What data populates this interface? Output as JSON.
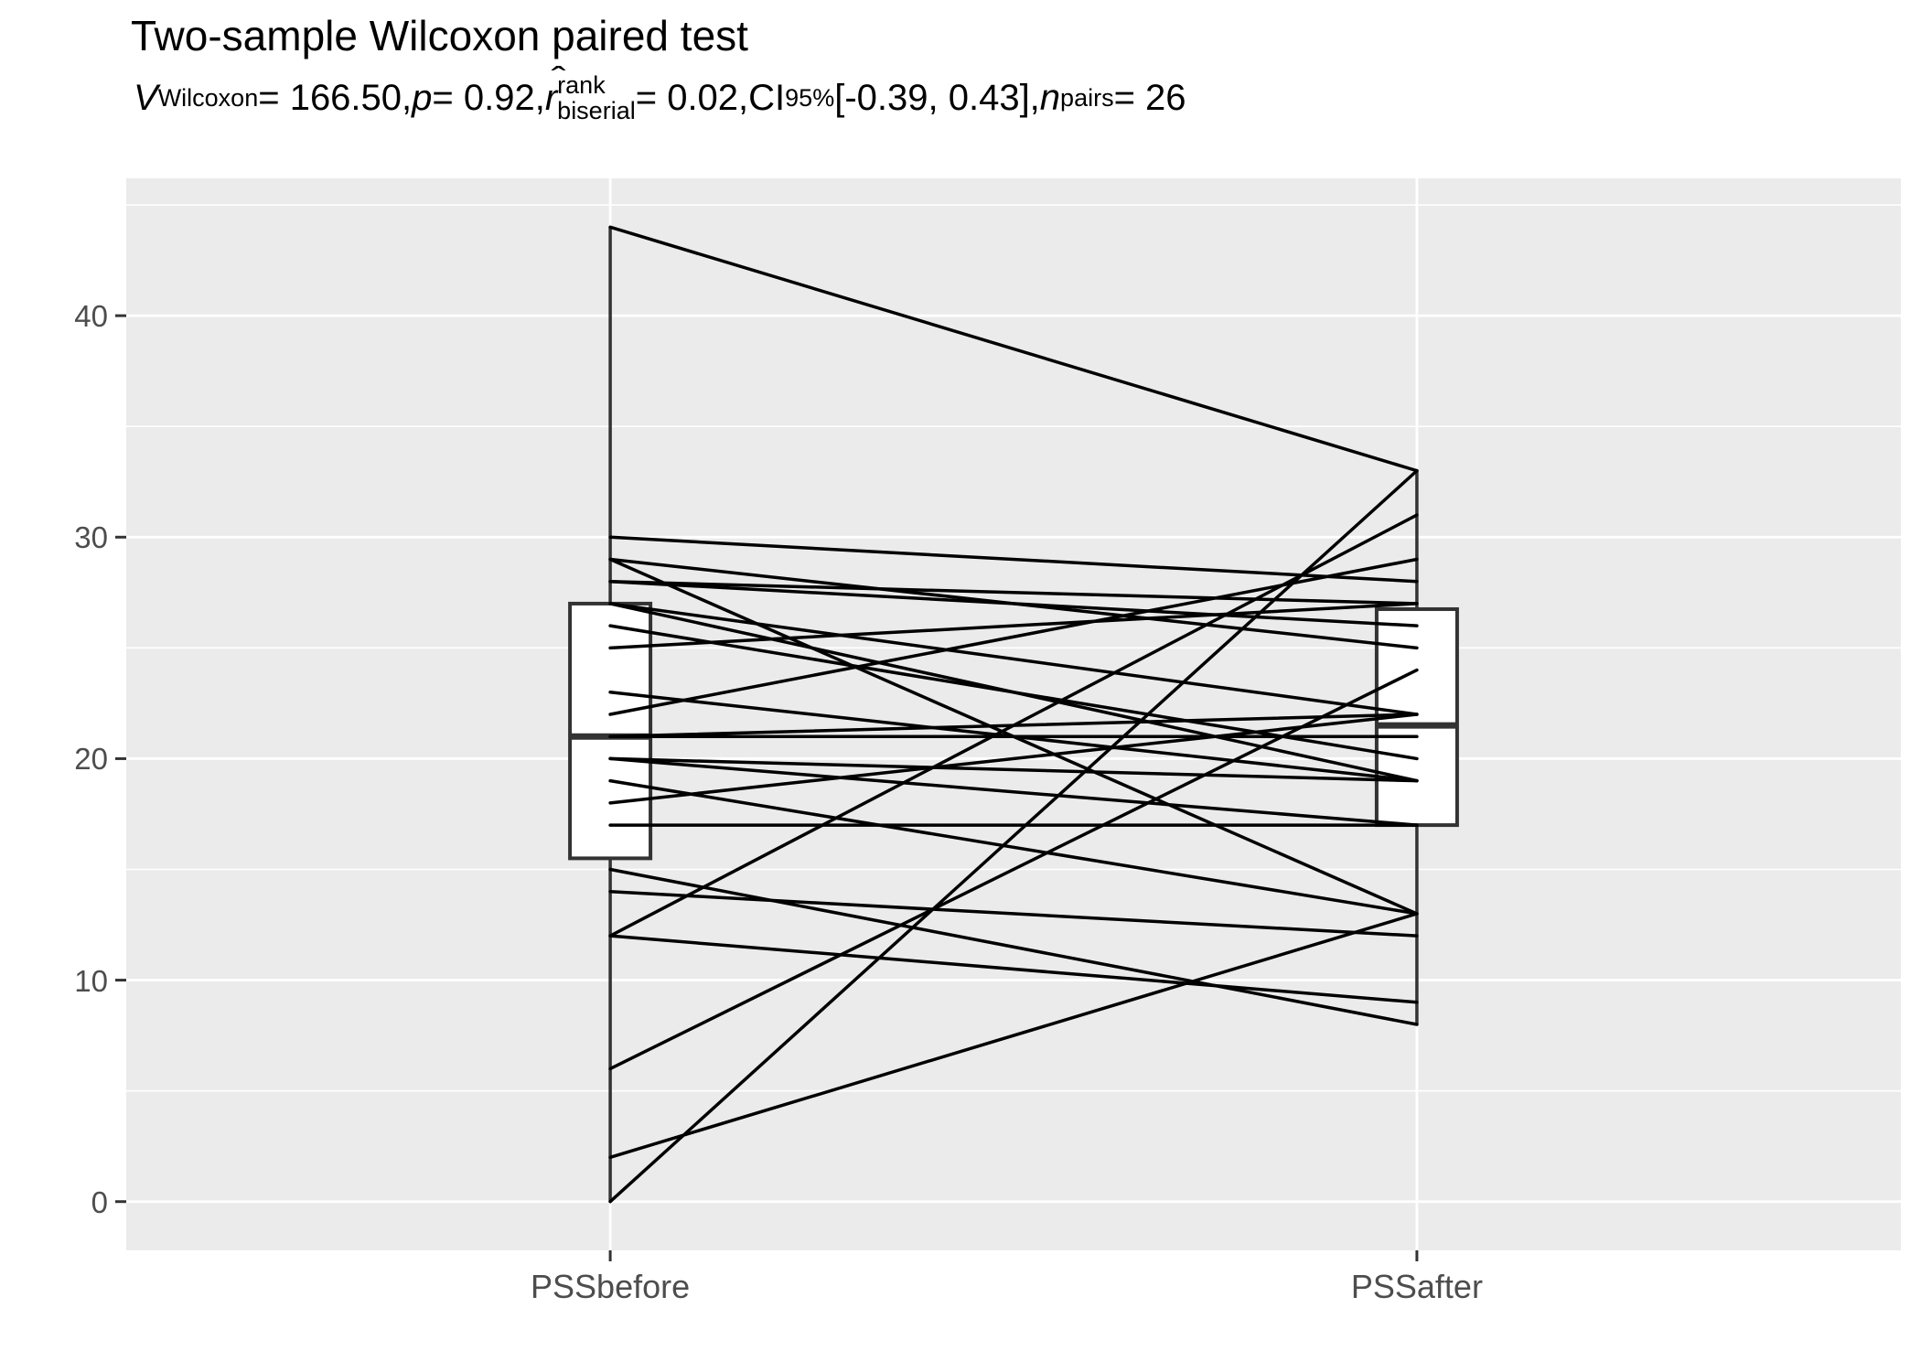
{
  "title": "Two-sample Wilcoxon paired test",
  "subtitle": {
    "v_sym": "V",
    "v_sub": "Wilcoxon",
    "v_val": " = 166.50, ",
    "p_sym": "p",
    "p_val": " = 0.92, ",
    "r_sym": "r",
    "r_hat": "ˆ",
    "r_sup": "rank",
    "r_sub": "biserial",
    "r_val": " = 0.02, ",
    "ci_sym": "CI",
    "ci_sub": "95%",
    "ci_val": " [-0.39, 0.43], ",
    "n_sym": "n",
    "n_sub": "pairs",
    "n_val": " = 26"
  },
  "axes": {
    "x": {
      "categories": [
        "PSSbefore",
        "PSSafter"
      ]
    },
    "y": {
      "major_ticks": [
        0,
        10,
        20,
        30,
        40
      ],
      "minor_ticks": [
        5,
        15,
        25,
        35,
        45
      ],
      "domain": [
        -2.2,
        46.2
      ]
    }
  },
  "style": {
    "panel_fill": "#EBEBEB",
    "grid_color": "#FFFFFF",
    "box_stroke": "#333333",
    "box_fill": "#FFFFFF",
    "line_color": "#000000",
    "axis_text_color": "#4D4D4D",
    "tick_color": "#333333"
  },
  "chart_data": {
    "type": "paired-line-box",
    "title": "Two-sample Wilcoxon paired test",
    "x_categories": [
      "PSSbefore",
      "PSSafter"
    ],
    "n_pairs": 26,
    "stats": {
      "V": 166.5,
      "p": 0.92,
      "r_rank_biserial": 0.02,
      "ci95": [
        -0.39,
        0.43
      ]
    },
    "pairs": [
      [
        44,
        33
      ],
      [
        30,
        28
      ],
      [
        29,
        25
      ],
      [
        29,
        13
      ],
      [
        28,
        27
      ],
      [
        28,
        26
      ],
      [
        27,
        22
      ],
      [
        27,
        19
      ],
      [
        26,
        20
      ],
      [
        25,
        27
      ],
      [
        23,
        19
      ],
      [
        22,
        29
      ],
      [
        21,
        21
      ],
      [
        21,
        22
      ],
      [
        20,
        19
      ],
      [
        20,
        17
      ],
      [
        19,
        13
      ],
      [
        18,
        22
      ],
      [
        17,
        17
      ],
      [
        15,
        8
      ],
      [
        14,
        12
      ],
      [
        12,
        31
      ],
      [
        12,
        9
      ],
      [
        6,
        24
      ],
      [
        2,
        13
      ],
      [
        0,
        33
      ]
    ],
    "boxplots": [
      {
        "category": "PSSbefore",
        "q1": 15.5,
        "median": 21,
        "q3": 27,
        "whisker_low": 0,
        "whisker_high": 44
      },
      {
        "category": "PSSafter",
        "q1": 17,
        "median": 21.5,
        "q3": 26.75,
        "whisker_low": 8,
        "whisker_high": 33
      }
    ]
  }
}
